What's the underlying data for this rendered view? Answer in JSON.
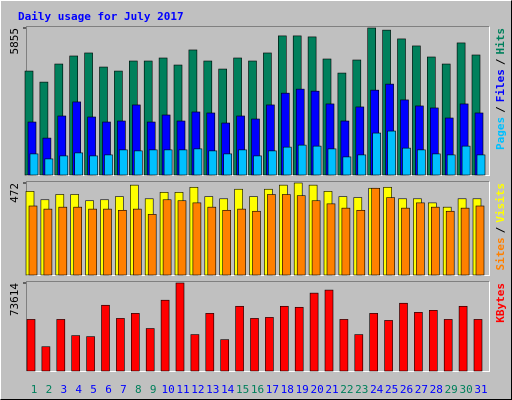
{
  "title": "Daily usage for July 2017",
  "title_color": "#0000ff",
  "legend_separator": "/",
  "chart_data": [
    {
      "type": "bar",
      "ylim": [
        0,
        5855
      ],
      "yticks": [
        5855
      ],
      "series": [
        {
          "name": "Hits",
          "color": "#00805c",
          "values": [
            4140,
            3700,
            4420,
            4740,
            4860,
            4300,
            4140,
            4540,
            4540,
            4660,
            4380,
            4980,
            4540,
            4220,
            4660,
            4540,
            4860,
            5540,
            5540,
            5500,
            4620,
            4060,
            4580,
            5855,
            5770,
            5420,
            5140,
            4700,
            4420,
            5260,
            4780
          ]
        },
        {
          "name": "Files",
          "color": "#0000ff",
          "values": [
            2110,
            1470,
            2350,
            2910,
            2310,
            2110,
            2150,
            2790,
            2110,
            2390,
            2150,
            2510,
            2470,
            2070,
            2350,
            2230,
            2790,
            3260,
            3420,
            3340,
            2830,
            2150,
            2710,
            3380,
            3620,
            2990,
            2750,
            2670,
            2270,
            2830,
            2470
          ]
        },
        {
          "name": "Pages",
          "color": "#00c0ff",
          "values": [
            840,
            640,
            760,
            880,
            760,
            800,
            1000,
            960,
            1000,
            1000,
            1000,
            1040,
            960,
            840,
            1000,
            760,
            960,
            1110,
            1190,
            1150,
            1040,
            720,
            800,
            1670,
            1750,
            1070,
            1000,
            840,
            800,
            1150,
            800
          ]
        }
      ]
    },
    {
      "type": "bar",
      "ylim": [
        0,
        472
      ],
      "yticks": [
        472
      ],
      "series": [
        {
          "name": "Visits",
          "color": "#ffff00",
          "values": [
            429,
            386,
            413,
            413,
            381,
            386,
            402,
            461,
            391,
            424,
            424,
            450,
            402,
            391,
            440,
            402,
            440,
            461,
            472,
            461,
            429,
            402,
            397,
            445,
            450,
            391,
            391,
            370,
            348,
            391,
            391
          ]
        },
        {
          "name": "Sites",
          "color": "#ff8000",
          "values": [
            354,
            338,
            348,
            348,
            338,
            338,
            332,
            338,
            311,
            386,
            381,
            370,
            348,
            332,
            338,
            327,
            413,
            413,
            407,
            381,
            365,
            343,
            332,
            445,
            397,
            343,
            370,
            348,
            327,
            343,
            354
          ]
        }
      ]
    },
    {
      "type": "bar",
      "ylim": [
        0,
        73614
      ],
      "yticks": [
        73614
      ],
      "categories": [
        "1",
        "2",
        "3",
        "4",
        "5",
        "6",
        "7",
        "8",
        "9",
        "10",
        "11",
        "12",
        "13",
        "14",
        "15",
        "16",
        "17",
        "18",
        "19",
        "20",
        "21",
        "22",
        "23",
        "24",
        "25",
        "26",
        "27",
        "28",
        "29",
        "30",
        "31"
      ],
      "category_colors": [
        "#00805c",
        "#00805c",
        "#0000ff",
        "#0000ff",
        "#0000ff",
        "#0000ff",
        "#0000ff",
        "#00805c",
        "#00805c",
        "#0000ff",
        "#0000ff",
        "#0000ff",
        "#0000ff",
        "#0000ff",
        "#00805c",
        "#00805c",
        "#0000ff",
        "#0000ff",
        "#0000ff",
        "#0000ff",
        "#0000ff",
        "#00805c",
        "#00805c",
        "#0000ff",
        "#0000ff",
        "#0000ff",
        "#0000ff",
        "#0000ff",
        "#00805c",
        "#00805c",
        "#0000ff"
      ],
      "series": [
        {
          "name": "KBytes",
          "color": "#ff0000",
          "values": [
            43150,
            20300,
            43150,
            29600,
            28760,
            54990,
            43990,
            48220,
            35530,
            59220,
            73614,
            30460,
            48220,
            26230,
            54140,
            43990,
            44840,
            54140,
            53300,
            65140,
            67680,
            43150,
            30460,
            48220,
            42300,
            56680,
            49070,
            50760,
            43150,
            54140,
            43150
          ]
        }
      ]
    }
  ]
}
